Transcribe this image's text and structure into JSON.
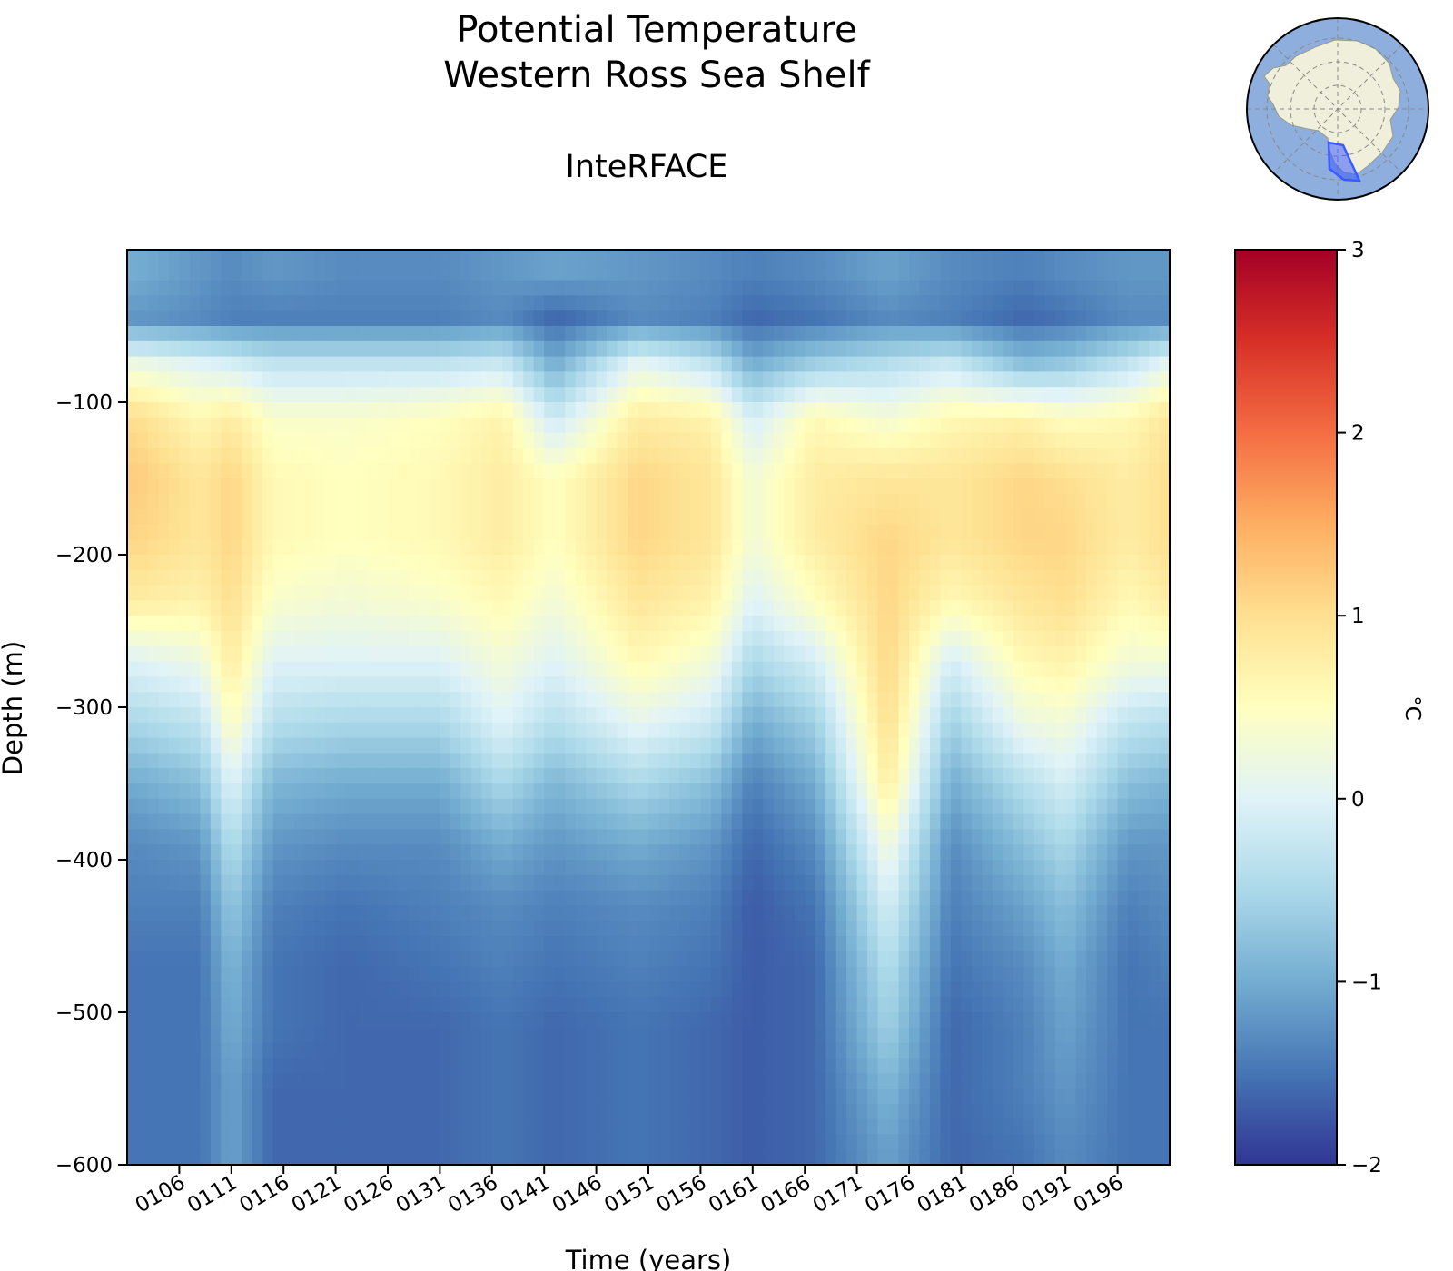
{
  "chart_data": {
    "type": "heatmap",
    "title_lines": [
      "Potential Temperature",
      "Western Ross Sea Shelf"
    ],
    "subtitle": "InteRFACE",
    "xlabel": "Time (years)",
    "ylabel": "Depth (m)",
    "colorbar_label": "°C",
    "x_range": [
      101,
      201
    ],
    "y_range": [
      -600,
      0
    ],
    "x_ticks": [
      "0106",
      "0111",
      "0116",
      "0121",
      "0126",
      "0131",
      "0136",
      "0141",
      "0146",
      "0151",
      "0156",
      "0161",
      "0166",
      "0171",
      "0176",
      "0181",
      "0186",
      "0191",
      "0196"
    ],
    "y_ticks": [
      -100,
      -200,
      -300,
      -400,
      -500,
      -600
    ],
    "y_tick_labels": [
      "−100",
      "−200",
      "−300",
      "−400",
      "−500",
      "−600"
    ],
    "colorbar_range": [
      -2,
      3
    ],
    "colorbar_ticks": [
      3,
      2,
      1,
      0,
      -1,
      -2
    ],
    "colorbar_tick_labels": [
      "3",
      "2",
      "1",
      "0",
      "−1",
      "−2"
    ],
    "colormap": "RdYlBu_r",
    "colormap_stops": [
      "#313695",
      "#4575b4",
      "#74add1",
      "#abd9e9",
      "#e0f3f8",
      "#ffffbf",
      "#fee090",
      "#fdae61",
      "#f46d43",
      "#d73027",
      "#a50026"
    ],
    "depth_levels": [
      -15,
      -45,
      -75,
      -110,
      -150,
      -190,
      -230,
      -270,
      -310,
      -350,
      -390,
      -430,
      -470,
      -510,
      -550,
      -590
    ],
    "times": [
      102,
      108,
      111,
      115,
      122,
      131,
      137,
      142,
      150,
      157,
      161,
      167,
      174,
      180,
      187,
      191,
      197,
      201
    ],
    "values": [
      [
        -1.0,
        -1.2,
        -1.3,
        -1.2,
        -1.3,
        -1.3,
        -1.2,
        -1.1,
        -1.2,
        -1.3,
        -1.4,
        -1.3,
        -1.1,
        -1.3,
        -1.4,
        -1.3,
        -1.2,
        -1.2
      ],
      [
        -1.2,
        -1.3,
        -1.4,
        -1.4,
        -1.4,
        -1.4,
        -1.3,
        -1.6,
        -1.3,
        -1.4,
        -1.6,
        -1.5,
        -1.3,
        -1.4,
        -1.6,
        -1.5,
        -1.3,
        -1.3
      ],
      [
        0.2,
        0.0,
        -0.1,
        -0.3,
        -0.3,
        -0.3,
        -0.2,
        -1.0,
        0.1,
        -0.3,
        -1.0,
        -0.6,
        -0.4,
        -0.2,
        -0.8,
        -0.7,
        -0.3,
        0.1
      ],
      [
        1.0,
        0.6,
        0.8,
        0.4,
        0.4,
        0.5,
        0.7,
        -0.2,
        0.8,
        0.7,
        -0.1,
        0.6,
        0.3,
        0.6,
        0.7,
        0.5,
        0.6,
        0.9
      ],
      [
        1.2,
        0.9,
        1.1,
        0.6,
        0.5,
        0.6,
        0.8,
        0.5,
        1.1,
        0.9,
        0.3,
        0.8,
        0.9,
        0.9,
        1.1,
        1.0,
        0.8,
        1.0
      ],
      [
        1.1,
        0.9,
        1.1,
        0.6,
        0.5,
        0.6,
        0.8,
        0.5,
        1.1,
        0.9,
        0.3,
        0.8,
        1.1,
        0.9,
        1.1,
        1.1,
        0.8,
        1.0
      ],
      [
        0.8,
        0.7,
        1.0,
        0.4,
        0.3,
        0.4,
        0.6,
        0.3,
        0.9,
        0.7,
        0.0,
        0.5,
        1.1,
        0.6,
        0.9,
        1.0,
        0.6,
        0.8
      ],
      [
        0.0,
        0.2,
        0.8,
        0.0,
        0.0,
        0.0,
        0.3,
        0.0,
        0.6,
        0.3,
        -0.5,
        -0.1,
        1.1,
        -0.1,
        0.6,
        0.7,
        0.3,
        0.3
      ],
      [
        -0.5,
        -0.3,
        0.5,
        -0.4,
        -0.5,
        -0.5,
        0.0,
        -0.4,
        0.1,
        -0.2,
        -1.0,
        -0.6,
        1.0,
        -0.6,
        0.2,
        0.3,
        -0.3,
        -0.4
      ],
      [
        -1.0,
        -0.8,
        0.0,
        -0.9,
        -1.0,
        -1.0,
        -0.5,
        -0.9,
        -0.5,
        -0.8,
        -1.4,
        -1.0,
        0.8,
        -1.0,
        -0.4,
        -0.1,
        -0.8,
        -0.9
      ],
      [
        -1.3,
        -1.2,
        -0.4,
        -1.2,
        -1.3,
        -1.3,
        -1.0,
        -1.2,
        -1.0,
        -1.2,
        -1.6,
        -1.3,
        0.3,
        -1.3,
        -0.8,
        -0.5,
        -1.2,
        -1.2
      ],
      [
        -1.4,
        -1.4,
        -0.7,
        -1.4,
        -1.5,
        -1.4,
        -1.3,
        -1.4,
        -1.3,
        -1.4,
        -1.7,
        -1.5,
        -0.1,
        -1.4,
        -1.1,
        -0.8,
        -1.4,
        -1.3
      ],
      [
        -1.5,
        -1.5,
        -0.9,
        -1.5,
        -1.6,
        -1.5,
        -1.4,
        -1.5,
        -1.4,
        -1.5,
        -1.7,
        -1.6,
        -0.4,
        -1.5,
        -1.3,
        -1.0,
        -1.5,
        -1.4
      ],
      [
        -1.5,
        -1.5,
        -1.0,
        -1.5,
        -1.6,
        -1.6,
        -1.5,
        -1.6,
        -1.5,
        -1.6,
        -1.7,
        -1.6,
        -0.6,
        -1.6,
        -1.4,
        -1.1,
        -1.5,
        -1.5
      ],
      [
        -1.5,
        -1.5,
        -1.1,
        -1.6,
        -1.6,
        -1.6,
        -1.5,
        -1.6,
        -1.5,
        -1.6,
        -1.7,
        -1.6,
        -0.9,
        -1.6,
        -1.4,
        -1.2,
        -1.5,
        -1.5
      ],
      [
        -1.5,
        -1.5,
        -1.1,
        -1.6,
        -1.6,
        -1.6,
        -1.5,
        -1.6,
        -1.5,
        -1.6,
        -1.7,
        -1.6,
        -1.1,
        -1.6,
        -1.5,
        -1.3,
        -1.5,
        -1.5
      ]
    ]
  },
  "inset_map": {
    "ocean_color": "#8eaede",
    "land_color": "#efefdb",
    "region_color": "#3b5bff"
  }
}
